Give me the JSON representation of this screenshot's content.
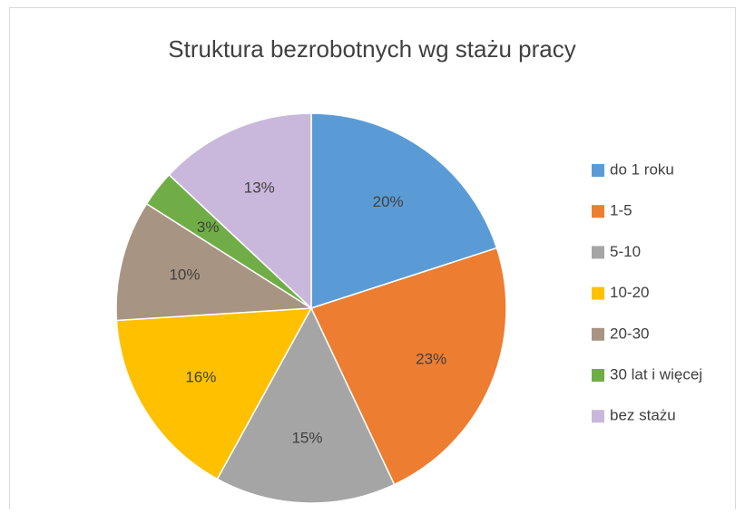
{
  "chart_data": {
    "type": "pie",
    "title": "Struktura bezrobotnych wg stażu pracy",
    "categories": [
      "do 1 roku",
      "1-5",
      "5-10",
      "10-20",
      "20-30",
      "30 lat i więcej",
      "bez stażu"
    ],
    "values": [
      20,
      23,
      15,
      16,
      10,
      3,
      13
    ],
    "value_labels": [
      "20%",
      "23%",
      "15%",
      "16%",
      "10%",
      "3%",
      "13%"
    ],
    "colors": [
      "#5b9bd5",
      "#ed7d31",
      "#a5a5a5",
      "#ffc000",
      "#a89482",
      "#70ad47",
      "#c9b8dc"
    ],
    "legend": "right"
  }
}
